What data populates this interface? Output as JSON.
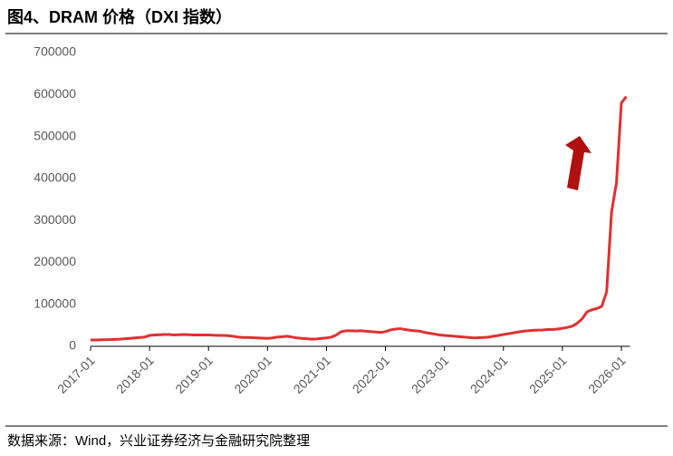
{
  "chart_data": {
    "type": "line",
    "title": "图4、DRAM 价格（DXI 指数）",
    "source": "数据来源：Wind，兴业证券经济与金融研究院整理",
    "x": [
      "2017-01",
      "2017-02",
      "2017-03",
      "2017-04",
      "2017-05",
      "2017-06",
      "2017-07",
      "2017-08",
      "2017-09",
      "2017-10",
      "2017-11",
      "2017-12",
      "2018-01",
      "2018-02",
      "2018-03",
      "2018-04",
      "2018-05",
      "2018-06",
      "2018-07",
      "2018-08",
      "2018-09",
      "2018-10",
      "2018-11",
      "2018-12",
      "2019-01",
      "2019-02",
      "2019-03",
      "2019-04",
      "2019-05",
      "2019-06",
      "2019-07",
      "2019-08",
      "2019-09",
      "2019-10",
      "2019-11",
      "2019-12",
      "2020-01",
      "2020-02",
      "2020-03",
      "2020-04",
      "2020-05",
      "2020-06",
      "2020-07",
      "2020-08",
      "2020-09",
      "2020-10",
      "2020-11",
      "2020-12",
      "2021-01",
      "2021-02",
      "2021-03",
      "2021-04",
      "2021-05",
      "2021-06",
      "2021-07",
      "2021-08",
      "2021-09",
      "2021-10",
      "2021-11",
      "2021-12",
      "2022-01",
      "2022-02",
      "2022-03",
      "2022-04",
      "2022-05",
      "2022-06",
      "2022-07",
      "2022-08",
      "2022-09",
      "2022-10",
      "2022-11",
      "2022-12",
      "2023-01",
      "2023-02",
      "2023-03",
      "2023-04",
      "2023-05",
      "2023-06",
      "2023-07",
      "2023-08",
      "2023-09",
      "2023-10",
      "2023-11",
      "2023-12",
      "2024-01",
      "2024-02",
      "2024-03",
      "2024-04",
      "2024-05",
      "2024-06",
      "2024-07",
      "2024-08",
      "2024-09",
      "2024-10",
      "2024-11",
      "2024-12",
      "2025-01",
      "2025-02",
      "2025-03",
      "2025-04",
      "2025-05",
      "2025-06",
      "2025-07",
      "2025-08",
      "2025-09",
      "2025-10",
      "2025-11",
      "2025-12",
      "2026-01",
      "2026-02"
    ],
    "series": [
      {
        "name": "DXI",
        "color": "#e03030",
        "values": [
          15000,
          15000,
          15500,
          16000,
          16000,
          16500,
          17000,
          18000,
          19000,
          20000,
          21000,
          22000,
          26000,
          27000,
          27500,
          28000,
          28000,
          27000,
          27500,
          28000,
          27500,
          27000,
          27000,
          27000,
          27000,
          26500,
          26000,
          26000,
          25500,
          24000,
          22000,
          21000,
          21000,
          20500,
          20000,
          19500,
          19000,
          20000,
          22000,
          23000,
          24000,
          22000,
          20000,
          19000,
          18000,
          17000,
          17500,
          19000,
          20000,
          22000,
          27000,
          35000,
          37000,
          37000,
          36500,
          37000,
          36000,
          35000,
          34000,
          33000,
          35000,
          39000,
          41000,
          42000,
          40000,
          38000,
          37000,
          36000,
          33000,
          31000,
          29000,
          27000,
          26000,
          25000,
          24000,
          23000,
          22000,
          21000,
          20000,
          20500,
          21000,
          22000,
          24000,
          26000,
          28000,
          30000,
          32000,
          34000,
          36000,
          37000,
          38000,
          38500,
          39000,
          40000,
          40000,
          41000,
          43000,
          45000,
          48000,
          55000,
          65000,
          82000,
          87000,
          90000,
          95000,
          130000,
          320000,
          390000,
          580000,
          595000
        ]
      }
    ],
    "ylim": [
      0,
      700000
    ],
    "yticks": [
      0,
      100000,
      200000,
      300000,
      400000,
      500000,
      600000,
      700000
    ],
    "xticks": [
      "2017-01",
      "2018-01",
      "2019-01",
      "2020-01",
      "2021-01",
      "2022-01",
      "2023-01",
      "2024-01",
      "2025-01",
      "2026-01"
    ]
  }
}
